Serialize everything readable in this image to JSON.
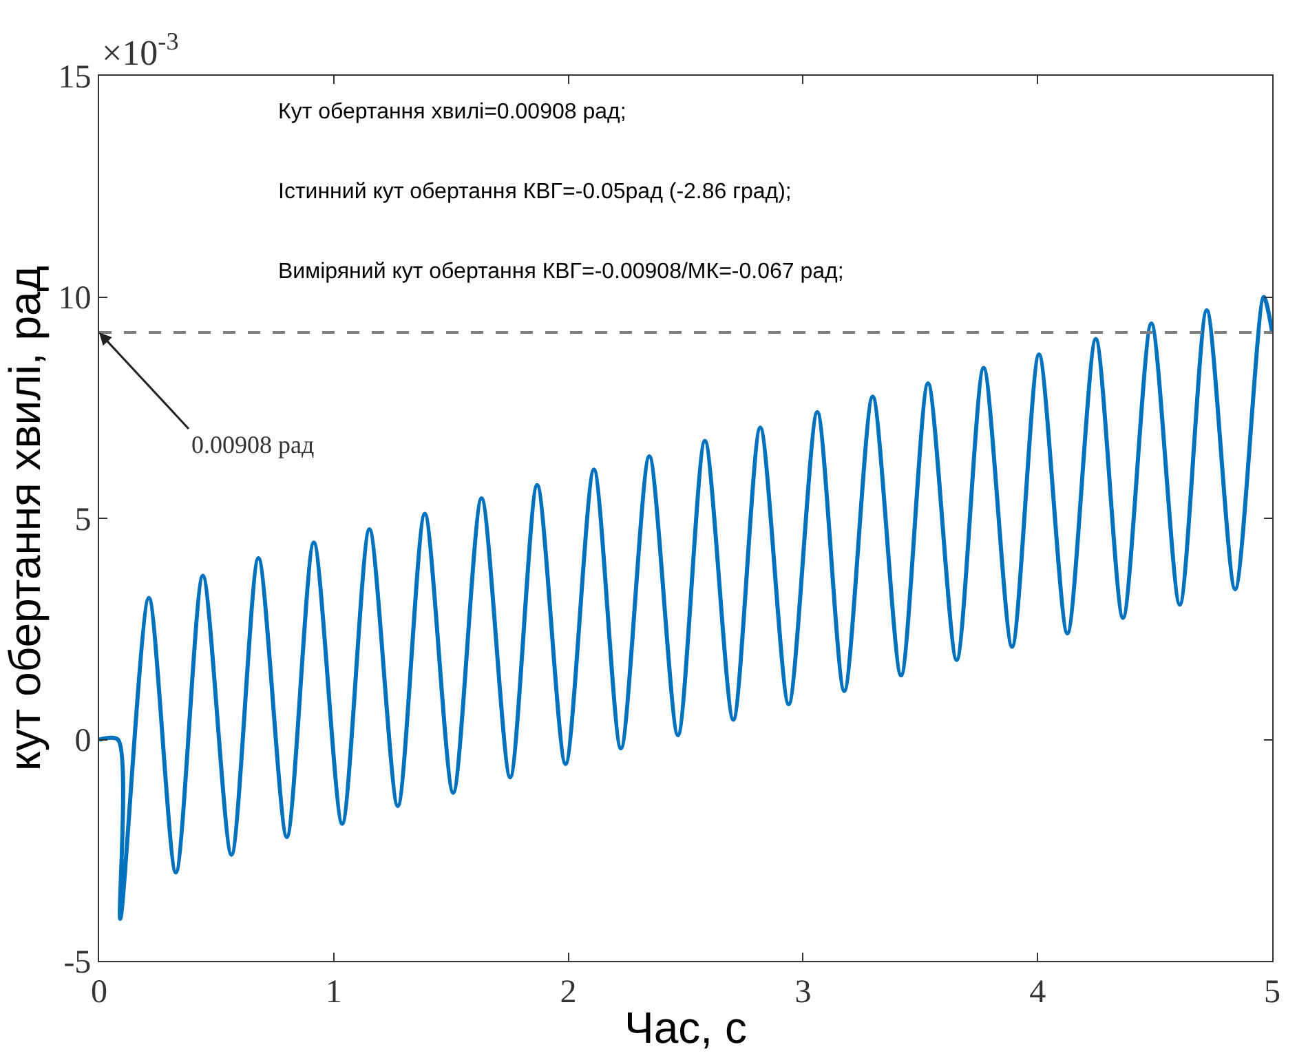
{
  "chart_data": {
    "type": "line",
    "xlabel": "Час, с",
    "ylabel": "кут обертання хвилі, рад",
    "xlim": [
      0,
      5
    ],
    "xticks": [
      0,
      1,
      2,
      3,
      4,
      5
    ],
    "ylim": [
      -5,
      15
    ],
    "yticks": [
      -5,
      0,
      5,
      10,
      15
    ],
    "marker": "none",
    "line_style": "solid",
    "series": [
      {
        "color": "#0072bd",
        "x": [
          0,
          0.08,
          0.09,
          0.212,
          0.327,
          0.442,
          0.564,
          0.679,
          0.8,
          0.915,
          1.036,
          1.152,
          1.273,
          1.388,
          1.509,
          1.63,
          1.752,
          1.867,
          1.988,
          2.109,
          2.224,
          2.345,
          2.467,
          2.582,
          2.703,
          2.818,
          2.939,
          3.061,
          3.176,
          3.297,
          3.418,
          3.533,
          3.655,
          3.77,
          3.891,
          4.006,
          4.127,
          4.248,
          4.364,
          4.485,
          4.606,
          4.721,
          4.842,
          4.964,
          5.0
        ],
        "values": [
          0,
          0,
          -4.05,
          3.2,
          -3.0,
          3.7,
          -2.6,
          4.1,
          -2.2,
          4.45,
          -1.9,
          4.75,
          -1.5,
          5.1,
          -1.2,
          5.45,
          -0.85,
          5.75,
          -0.55,
          6.1,
          -0.2,
          6.4,
          0.1,
          6.75,
          0.45,
          7.05,
          0.8,
          7.4,
          1.1,
          7.75,
          1.45,
          8.05,
          1.8,
          8.4,
          2.1,
          8.7,
          2.4,
          9.05,
          2.75,
          9.4,
          3.05,
          9.7,
          3.4,
          10.0,
          9.2
        ]
      }
    ],
    "ref_lines": [
      {
        "axis": "y",
        "value": 9.2,
        "color": "#7f7f7f",
        "line_style": "dashed"
      }
    ],
    "annotations": [
      "×10$^{-3}$",
      "Кут обертання хвилі=0.00908 рад;",
      "Істинний кут обертання КВГ=-0.05рад (-2.86 град);",
      "Виміряний кут обертання КВГ=-0.00908/МК=-0.067 рад;",
      {
        "text": "0.00908 рад",
        "x": 0,
        "y": 9.2
      }
    ]
  }
}
